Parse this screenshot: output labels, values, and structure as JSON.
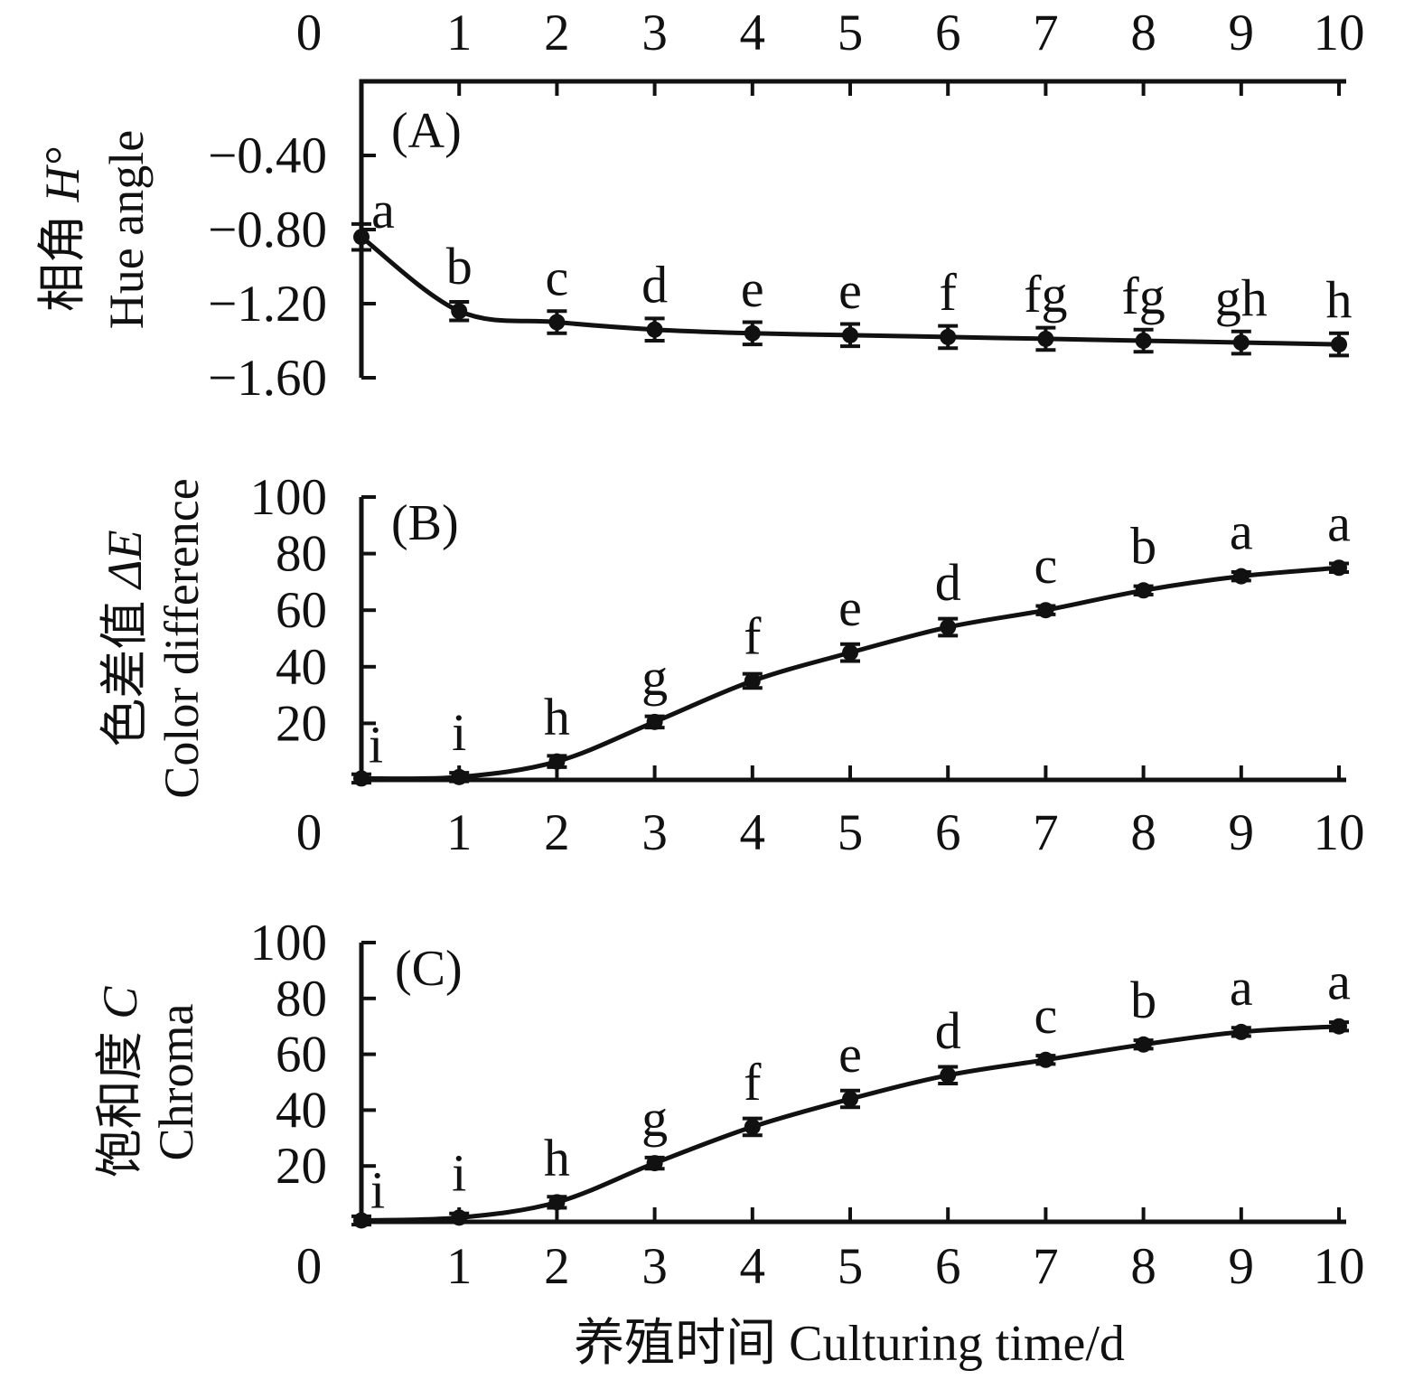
{
  "figure": {
    "background_color": "#ffffff",
    "ink_color": "#111111",
    "x_axis_title": "养殖时间 Culturing time/d",
    "x_tick_labels": [
      "0",
      "1",
      "2",
      "3",
      "4",
      "5",
      "6",
      "7",
      "8",
      "9",
      "10"
    ]
  },
  "chart_data": [
    {
      "type": "line",
      "panel_label": "(A)",
      "ylabel_zh": "相角 ",
      "ylabel_sym": "H°",
      "ylabel_en": "Hue angle",
      "x_axis_side": "top",
      "xlim": [
        0,
        10
      ],
      "ylim": [
        -1.6,
        0
      ],
      "ytick_values": [
        -0.4,
        -0.8,
        -1.2,
        -1.6
      ],
      "ytick_labels": [
        "−0.40",
        "−0.80",
        "−1.20",
        "−1.60"
      ],
      "x": [
        0,
        1,
        2,
        3,
        4,
        5,
        6,
        7,
        8,
        9,
        10
      ],
      "values": [
        -0.84,
        -1.24,
        -1.3,
        -1.34,
        -1.36,
        -1.37,
        -1.38,
        -1.39,
        -1.4,
        -1.41,
        -1.42
      ],
      "errors": [
        0.07,
        0.05,
        0.06,
        0.06,
        0.06,
        0.06,
        0.06,
        0.06,
        0.06,
        0.06,
        0.06
      ],
      "point_labels": [
        "a",
        "b",
        "c",
        "d",
        "e",
        "e",
        "f",
        "fg",
        "fg",
        "gh",
        "h"
      ],
      "marker": "circle",
      "grid": false,
      "legend": "none"
    },
    {
      "type": "line",
      "panel_label": "(B)",
      "ylabel_zh": "色差值 ",
      "ylabel_sym": "ΔE",
      "ylabel_en": "Color difference",
      "x_axis_side": "bottom",
      "xlim": [
        0,
        10
      ],
      "ylim": [
        0,
        100
      ],
      "ytick_values": [
        100,
        80,
        60,
        40,
        20
      ],
      "ytick_labels": [
        "100",
        "80",
        "60",
        "40",
        "20"
      ],
      "x": [
        0,
        1,
        2,
        3,
        4,
        5,
        6,
        7,
        8,
        9,
        10
      ],
      "values": [
        0.5,
        1,
        6.5,
        20.5,
        35,
        45,
        54,
        60,
        67,
        72,
        75
      ],
      "errors": [
        1.5,
        1.5,
        2,
        2,
        2.5,
        3,
        3,
        1.5,
        1.5,
        1.5,
        1.5
      ],
      "point_labels": [
        "i",
        "i",
        "h",
        "g",
        "f",
        "e",
        "d",
        "c",
        "b",
        "a",
        "a"
      ],
      "marker": "circle",
      "grid": false,
      "legend": "none"
    },
    {
      "type": "line",
      "panel_label": "(C)",
      "ylabel_zh": "饱和度 ",
      "ylabel_sym": "C",
      "ylabel_en": "Chroma",
      "x_axis_side": "bottom",
      "xlim": [
        0,
        10
      ],
      "ylim": [
        0,
        100
      ],
      "ytick_values": [
        100,
        80,
        60,
        40,
        20
      ],
      "ytick_labels": [
        "100",
        "80",
        "60",
        "40",
        "20"
      ],
      "x": [
        0,
        1,
        2,
        3,
        4,
        5,
        6,
        7,
        8,
        9,
        10
      ],
      "values": [
        0.5,
        1.5,
        7,
        21,
        34,
        44,
        52.5,
        58,
        63.5,
        68,
        70
      ],
      "errors": [
        1.5,
        1.5,
        2,
        2,
        3,
        3,
        3,
        1.5,
        1.5,
        1.5,
        1.5
      ],
      "point_labels": [
        "i",
        "i",
        "h",
        "g",
        "f",
        "e",
        "d",
        "c",
        "b",
        "a",
        "a"
      ],
      "marker": "circle",
      "grid": false,
      "legend": "none"
    }
  ]
}
